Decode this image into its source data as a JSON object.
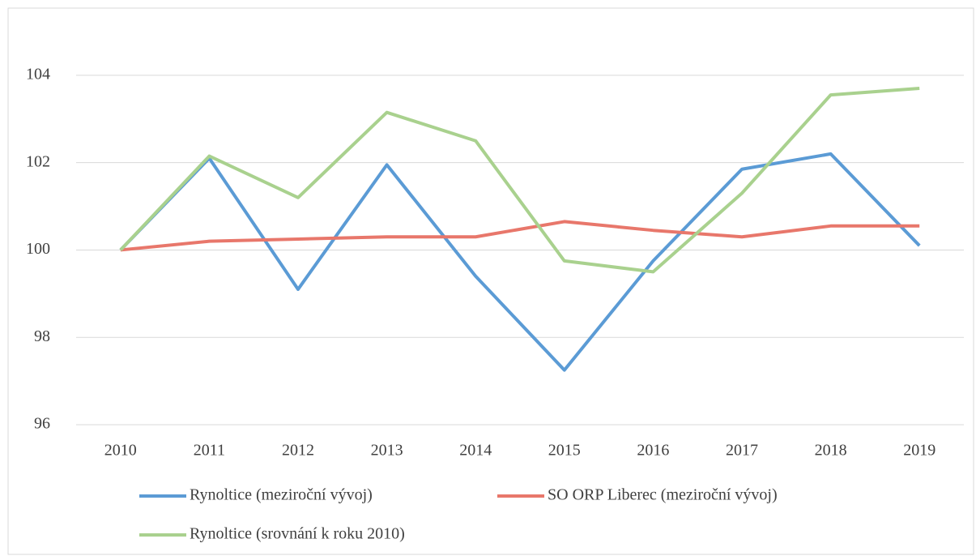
{
  "chart_data": {
    "type": "line",
    "categories": [
      "2010",
      "2011",
      "2012",
      "2013",
      "2014",
      "2015",
      "2016",
      "2017",
      "2018",
      "2019"
    ],
    "series": [
      {
        "name": "Rynoltice (meziroční vývoj)",
        "color": "#5b9bd5",
        "values": [
          100,
          102.1,
          99.1,
          101.95,
          99.4,
          97.25,
          99.75,
          101.85,
          102.2,
          100.1
        ]
      },
      {
        "name": "SO ORP Liberec (meziroční vývoj)",
        "color": "#e8776b",
        "values": [
          100,
          100.2,
          100.25,
          100.3,
          100.3,
          100.65,
          100.45,
          100.3,
          100.55,
          100.55
        ]
      },
      {
        "name": "Rynoltice (srovnání k roku 2010)",
        "color": "#a9d18e",
        "values": [
          100,
          102.15,
          101.2,
          103.15,
          102.5,
          99.75,
          99.5,
          101.3,
          103.55,
          103.7
        ]
      }
    ],
    "ylim": [
      96,
      105
    ],
    "yticks": [
      96,
      98,
      100,
      102,
      104
    ],
    "grid": true
  }
}
